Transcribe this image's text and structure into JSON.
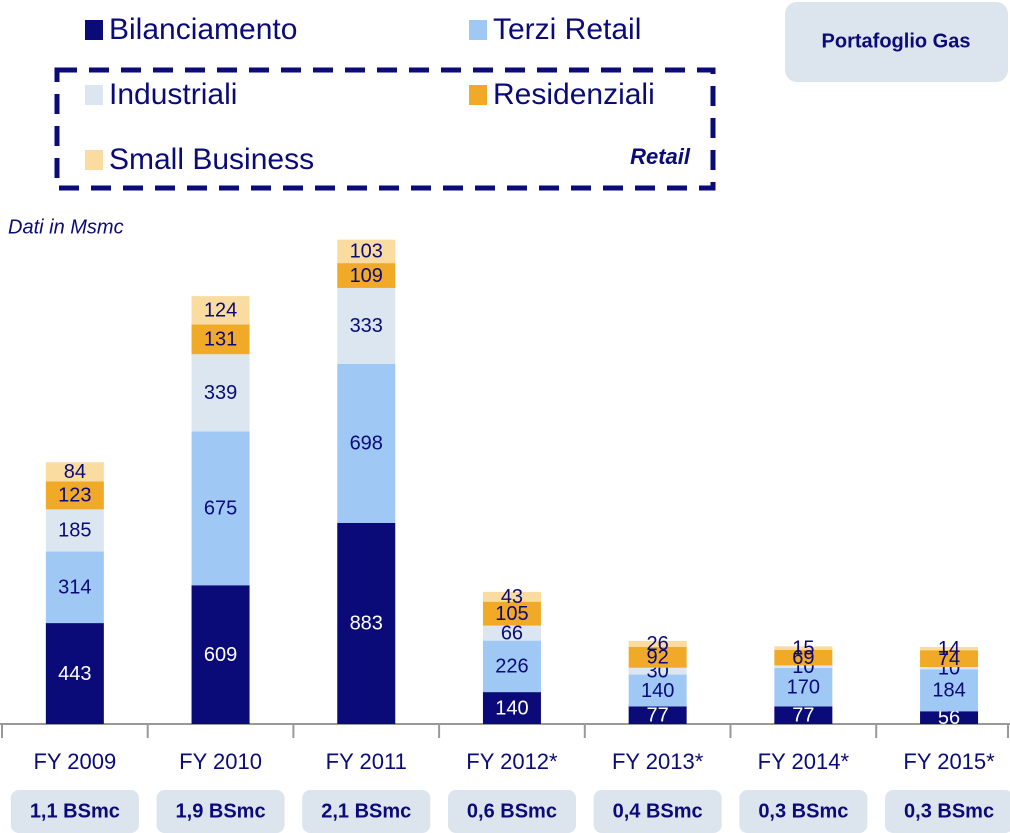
{
  "chart_data": {
    "type": "stacked_bar",
    "title": "Portafoglio Gas",
    "subtitle": "Dati in Msmc",
    "legend_group_label": "Retail",
    "categories": [
      "FY 2009",
      "FY 2010",
      "FY 2011",
      "FY 2012*",
      "FY 2013*",
      "FY 2014*",
      "FY 2015*"
    ],
    "series": [
      {
        "name": "Bilanciamento",
        "color": "#0a0a78",
        "values": [
          443,
          609,
          883,
          140,
          77,
          77,
          56
        ]
      },
      {
        "name": "Terzi Retail",
        "color": "#a0c8f5",
        "values": [
          314,
          675,
          698,
          226,
          140,
          170,
          184
        ]
      },
      {
        "name": "Industriali",
        "color": "#dce6f0",
        "values": [
          185,
          339,
          333,
          66,
          30,
          10,
          10
        ]
      },
      {
        "name": "Residenziali",
        "color": "#f0aa28",
        "values": [
          123,
          131,
          109,
          105,
          92,
          69,
          74
        ]
      },
      {
        "name": "Small Business",
        "color": "#fadca0",
        "values": [
          84,
          124,
          103,
          43,
          26,
          15,
          14
        ]
      }
    ],
    "totals_labels": [
      "1,1 BSmc",
      "1,9 BSmc",
      "2,1 BSmc",
      "0,6 BSmc",
      "0,4 BSmc",
      "0,3 BSmc",
      "0,3 BSmc"
    ],
    "ylim": [
      0,
      2300
    ]
  }
}
